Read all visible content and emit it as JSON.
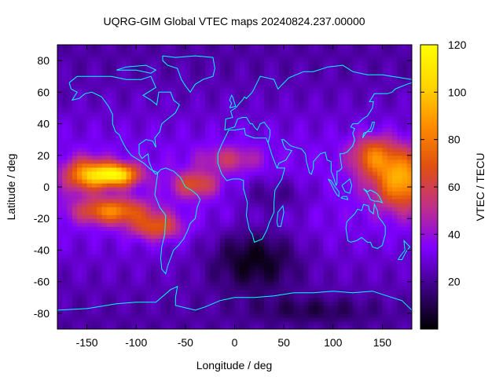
{
  "chart_data": {
    "type": "heatmap",
    "title": "UQRG-GIM Global VTEC maps 20240824.237.00000",
    "xlabel": "Longitude / deg",
    "ylabel": "Latitude / deg",
    "colorbar_label": "VTEC / TECU",
    "xlim": [
      -180,
      180
    ],
    "ylim": [
      -90,
      90
    ],
    "clim": [
      0,
      120
    ],
    "x_ticks": [
      -150,
      -100,
      -50,
      0,
      50,
      100,
      150
    ],
    "y_ticks": [
      -80,
      -60,
      -40,
      -20,
      0,
      20,
      40,
      60,
      80
    ],
    "colorbar_ticks": [
      20,
      40,
      60,
      80,
      100,
      120
    ],
    "colormap": [
      "#000000",
      "#3b0080",
      "#7f00ff",
      "#c0308a",
      "#e05010",
      "#ff8c00",
      "#ffd700",
      "#ffff00"
    ],
    "coastline_color": "#00ffff",
    "grid": false,
    "features": {
      "background_vtec": 28,
      "crest_peak_vtec": 115,
      "crest_peak_longitude": -120,
      "crest_peak_latitude": 8,
      "low_region_vtec": 8,
      "low_region_center": [
        20,
        -45
      ]
    }
  }
}
